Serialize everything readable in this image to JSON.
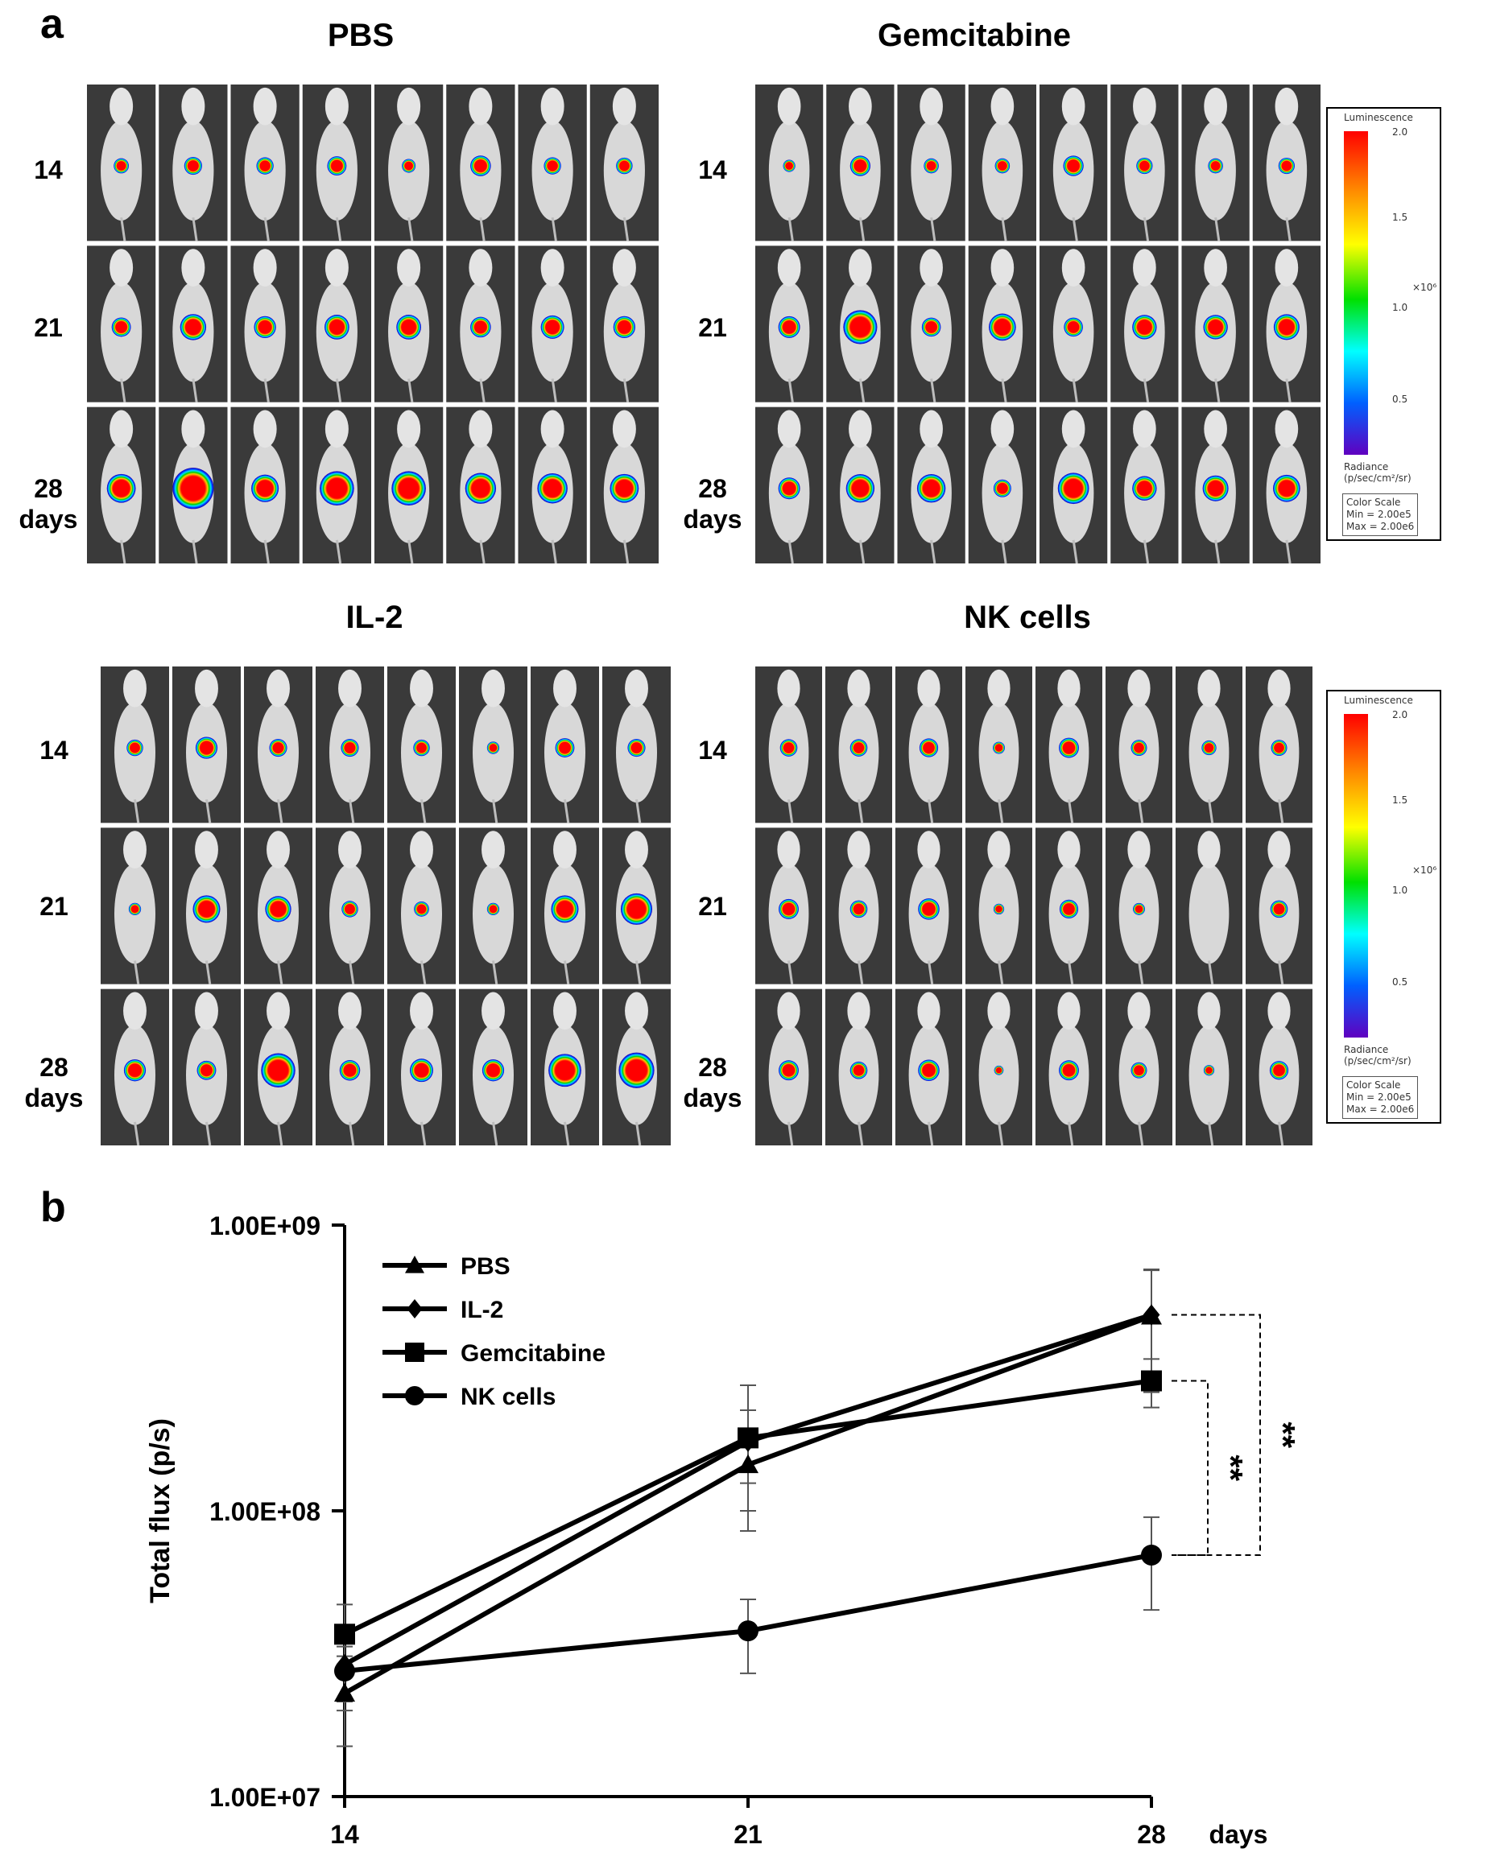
{
  "panel_a": {
    "letter": "a",
    "day_rows": [
      {
        "line1": "14",
        "line2": ""
      },
      {
        "line1": "21",
        "line2": ""
      },
      {
        "line1": "28",
        "line2": "days"
      }
    ],
    "groups": [
      {
        "title": "PBS"
      },
      {
        "title": "Gemcitabine"
      },
      {
        "title": "IL-2"
      },
      {
        "title": "NK cells"
      }
    ],
    "mice_per_row": 8,
    "colorbar": {
      "title": "Luminescence",
      "ticks": [
        "2.0",
        "1.5",
        "1.0",
        "0.5"
      ],
      "multiplier": "×10⁶",
      "unit_line1": "Radiance",
      "unit_line2": "(p/sec/cm²/sr)",
      "scale_title": "Color Scale",
      "scale_min": "Min = 2.00e5",
      "scale_max": "Max = 2.00e6"
    }
  },
  "panel_b": {
    "letter": "b"
  },
  "chart_data": {
    "type": "line",
    "title": "",
    "xlabel": "days",
    "ylabel": "Total flux (p/s)",
    "yscale": "log",
    "ylim": [
      10000000,
      1000000000
    ],
    "yticks": [
      "1.00E+07",
      "1.00E+08",
      "1.00E+09"
    ],
    "x": [
      14,
      21,
      28
    ],
    "xtick_labels": [
      "14",
      "21",
      "28"
    ],
    "series": [
      {
        "name": "PBS",
        "marker": "triangle",
        "values": [
          23000000,
          145000000,
          480000000
        ],
        "errors": [
          8000000,
          45000000,
          220000000
        ]
      },
      {
        "name": "IL-2",
        "marker": "diamond",
        "values": [
          29000000,
          175000000,
          485000000
        ],
        "errors": [
          9000000,
          50000000,
          210000000
        ]
      },
      {
        "name": "Gemcitabine",
        "marker": "square",
        "values": [
          37000000,
          180000000,
          285000000
        ],
        "errors": [
          10000000,
          95000000,
          55000000
        ]
      },
      {
        "name": "NK cells",
        "marker": "circle",
        "values": [
          27500000,
          38000000,
          70000000
        ],
        "errors": [
          6000000,
          11000000,
          25000000
        ]
      }
    ],
    "annotations": [
      {
        "text": "**",
        "between": [
          "Gemcitabine",
          "NK cells"
        ],
        "x": 28
      },
      {
        "text": "**",
        "between": [
          "IL-2",
          "NK cells"
        ],
        "x": 28
      }
    ]
  }
}
